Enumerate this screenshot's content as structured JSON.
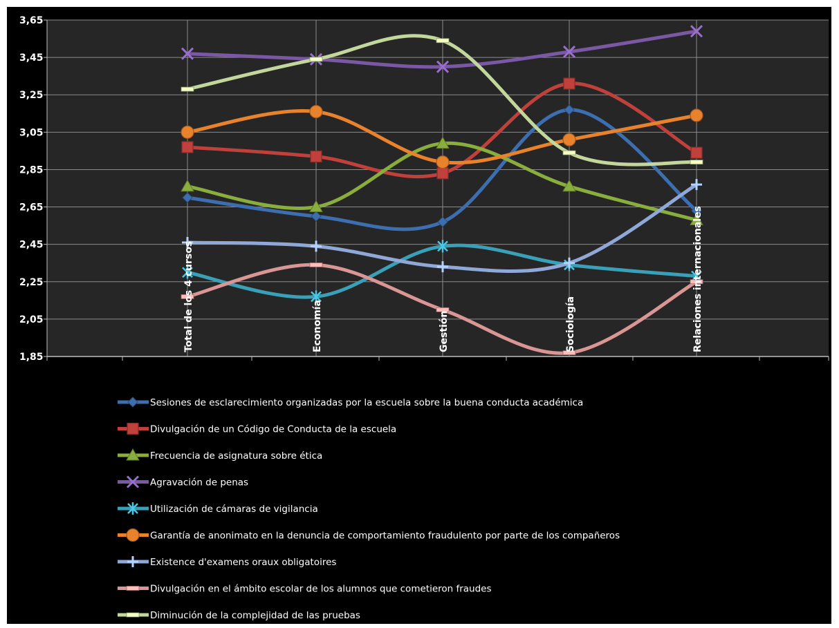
{
  "chart_data": {
    "type": "line",
    "title": "",
    "xlabel": "",
    "ylabel": "",
    "ylim": [
      1.85,
      3.65
    ],
    "y_ticks": [
      "1,85",
      "2,05",
      "2,25",
      "2,45",
      "2,65",
      "2,85",
      "3,05",
      "3,25",
      "3,45",
      "3,65"
    ],
    "grid": true,
    "legend_position": "bottom",
    "categories": [
      "Total de los 4 cursos",
      "Economía",
      "Gestión",
      "Sociología",
      "Relaciones internacionales"
    ],
    "series": [
      {
        "name": "Sesiones de esclarecimiento organizadas por la escuela sobre la buena conducta académica",
        "color": "#3d6fb0",
        "marker": "diamond",
        "values": [
          2.7,
          2.6,
          2.57,
          3.17,
          2.63
        ]
      },
      {
        "name": "Divulgación de un Código de Conducta de la escuela",
        "color": "#c0403c",
        "marker": "square",
        "values": [
          2.97,
          2.92,
          2.83,
          3.31,
          2.94
        ]
      },
      {
        "name": "Frecuencia de asignatura sobre ética",
        "color": "#8aae3e",
        "marker": "triangle",
        "values": [
          2.76,
          2.65,
          2.99,
          2.76,
          2.58
        ]
      },
      {
        "name": "Agravación de penas",
        "color": "#7a58a4",
        "marker": "x",
        "values": [
          3.47,
          3.44,
          3.4,
          3.48,
          3.59
        ]
      },
      {
        "name": "Utilización de cámaras de vigilancia",
        "color": "#3aa0b8",
        "marker": "star",
        "values": [
          2.3,
          2.17,
          2.44,
          2.34,
          2.28
        ]
      },
      {
        "name": "Garantía de anonimato en la denuncia de comportamiento fraudulento por parte de los compañeros",
        "color": "#e8822c",
        "marker": "circle",
        "values": [
          3.05,
          3.16,
          2.89,
          3.01,
          3.14
        ]
      },
      {
        "name": "Existence d'examens oraux obligatoires",
        "color": "#8fa8d8",
        "marker": "plus",
        "values": [
          2.46,
          2.44,
          2.33,
          2.35,
          2.77
        ]
      },
      {
        "name": "Divulgación en el ámbito escolar de los alumnos que cometieron fraudes",
        "color": "#d99694",
        "marker": "dash",
        "values": [
          2.17,
          2.34,
          2.1,
          1.87,
          2.25
        ]
      },
      {
        "name": "Diminución de la complejidad de las pruebas",
        "color": "#c3d69b",
        "marker": "dash",
        "values": [
          3.28,
          3.44,
          3.54,
          2.94,
          2.89
        ]
      }
    ]
  }
}
